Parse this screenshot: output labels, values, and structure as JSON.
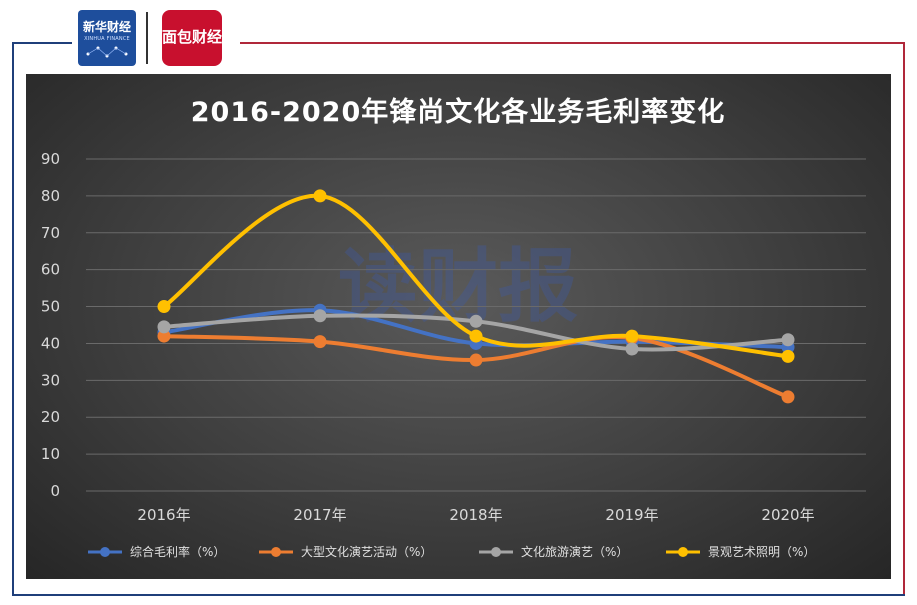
{
  "header": {
    "logo_xinhua_text": "新华财经",
    "logo_xinhua_sub": "XINHUA FINANCE",
    "logo_mian_text": "面包财经"
  },
  "watermark": "读财报",
  "chart_data": {
    "type": "line",
    "title": "2016-2020年锋尚文化各业务毛利率变化",
    "xlabel": "",
    "ylabel": "",
    "categories": [
      "2016年",
      "2017年",
      "2018年",
      "2019年",
      "2020年"
    ],
    "ylim": [
      0,
      90
    ],
    "yticks": [
      0,
      10,
      20,
      30,
      40,
      50,
      60,
      70,
      80,
      90
    ],
    "grid": true,
    "legend_position": "bottom",
    "series": [
      {
        "name": "综合毛利率（%）",
        "color": "#4472c4",
        "values": [
          43.0,
          49.0,
          40.0,
          40.5,
          39.0
        ]
      },
      {
        "name": "大型文化演艺活动（%）",
        "color": "#ed7d31",
        "values": [
          42.0,
          40.5,
          35.5,
          41.5,
          25.5
        ]
      },
      {
        "name": "文化旅游演艺（%）",
        "color": "#a5a5a5",
        "values": [
          44.5,
          47.5,
          46.0,
          38.5,
          41.0
        ]
      },
      {
        "name": "景观艺术照明（%）",
        "color": "#ffc000",
        "values": [
          50.0,
          80.0,
          42.0,
          42.0,
          36.5
        ]
      }
    ]
  }
}
